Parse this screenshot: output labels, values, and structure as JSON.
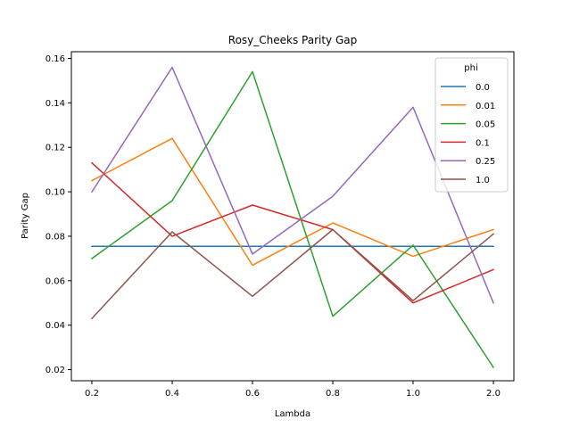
{
  "chart_data": {
    "type": "line",
    "title": "Rosy_Cheeks Parity Gap",
    "xlabel": "Lambda",
    "ylabel": "Parity Gap",
    "categories": [
      "0.2",
      "0.4",
      "0.6",
      "0.8",
      "1.0",
      "2.0"
    ],
    "y_ticks": [
      "0.02",
      "0.04",
      "0.06",
      "0.08",
      "0.10",
      "0.12",
      "0.14",
      "0.16"
    ],
    "ylim": [
      0.015,
      0.163
    ],
    "grid": false,
    "legend_title": "phi",
    "legend_position": "top-right",
    "series": [
      {
        "name": "0.0",
        "color": "#1f77b4",
        "values": [
          0.0755,
          0.0755,
          0.0755,
          0.0755,
          0.0755,
          0.0755
        ]
      },
      {
        "name": "0.01",
        "color": "#ff7f0e",
        "values": [
          0.105,
          0.124,
          0.067,
          0.086,
          0.071,
          0.083
        ]
      },
      {
        "name": "0.05",
        "color": "#2ca02c",
        "values": [
          0.07,
          0.096,
          0.154,
          0.044,
          0.076,
          0.021
        ]
      },
      {
        "name": "0.1",
        "color": "#d62728",
        "values": [
          0.113,
          0.08,
          0.094,
          0.083,
          0.05,
          0.065
        ]
      },
      {
        "name": "0.25",
        "color": "#9467bd",
        "values": [
          0.1,
          0.156,
          0.072,
          0.098,
          0.138,
          0.05
        ]
      },
      {
        "name": "1.0",
        "color": "#8c564b",
        "values": [
          0.043,
          0.082,
          0.053,
          0.083,
          0.051,
          0.081
        ]
      }
    ]
  }
}
